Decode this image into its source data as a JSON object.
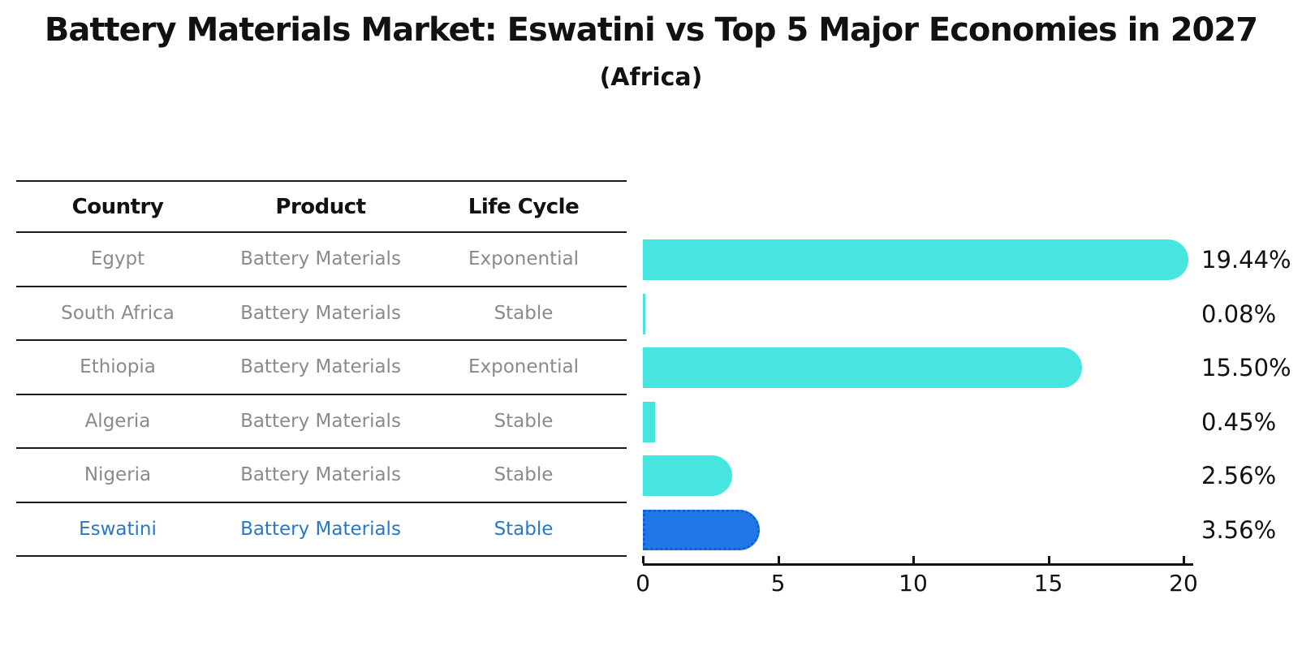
{
  "title": "Battery Materials Market: Eswatini vs Top 5 Major Economies in 2027",
  "subtitle": "(Africa)",
  "table": {
    "headers": [
      "Country",
      "Product",
      "Life Cycle"
    ],
    "rows": [
      {
        "country": "Egypt",
        "product": "Battery Materials",
        "life_cycle": "Exponential",
        "highlighted": false
      },
      {
        "country": "South Africa",
        "product": "Battery Materials",
        "life_cycle": "Stable",
        "highlighted": false
      },
      {
        "country": "Ethiopia",
        "product": "Battery Materials",
        "life_cycle": "Exponential",
        "highlighted": false
      },
      {
        "country": "Algeria",
        "product": "Battery Materials",
        "life_cycle": "Stable",
        "highlighted": false
      },
      {
        "country": "Nigeria",
        "product": "Battery Materials",
        "life_cycle": "Stable",
        "highlighted": false
      },
      {
        "country": "Eswatini",
        "product": "Battery Materials",
        "life_cycle": "Stable",
        "highlighted": true
      }
    ]
  },
  "chart_data": {
    "type": "bar",
    "orientation": "horizontal",
    "categories": [
      "Egypt",
      "South Africa",
      "Ethiopia",
      "Algeria",
      "Nigeria",
      "Eswatini"
    ],
    "values": [
      19.44,
      0.08,
      15.5,
      0.45,
      2.56,
      3.56
    ],
    "value_labels": [
      "19.44%",
      "0.08%",
      "15.50%",
      "0.45%",
      "2.56%",
      "3.56%"
    ],
    "highlight_index": 5,
    "xlim": [
      0,
      20
    ],
    "x_ticks": [
      "0",
      "5",
      "10",
      "15",
      "20"
    ],
    "grid": false,
    "legend": false,
    "bar_color": "#47e5e0",
    "highlight_bar_color": "#2078e6",
    "highlight_border_color": "#0d5ed8",
    "highlight_text_color": "#2878c8"
  }
}
